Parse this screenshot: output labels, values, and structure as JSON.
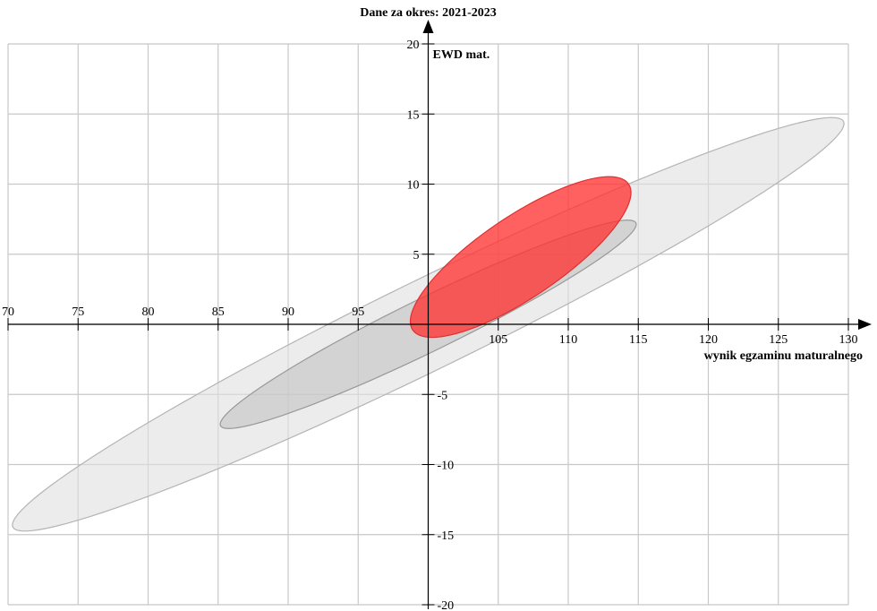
{
  "chart_data": {
    "type": "scatter",
    "title": "Dane za okres: 2021-2023",
    "xlabel": "wynik egzaminu maturalnego",
    "ylabel": "EWD mat.",
    "xlim": [
      70,
      130
    ],
    "ylim": [
      -20,
      20
    ],
    "x_ticks": [
      70,
      75,
      80,
      85,
      90,
      95,
      100,
      105,
      110,
      115,
      120,
      125,
      130
    ],
    "y_ticks": [
      -20,
      -15,
      -10,
      -5,
      0,
      5,
      10,
      15,
      20
    ],
    "x_tick_labels": [
      "70",
      "75",
      "80",
      "85",
      "90",
      "95",
      "",
      "105",
      "110",
      "115",
      "120",
      "125",
      "130"
    ],
    "y_tick_labels": [
      "-20",
      "-15",
      "-10",
      "-5",
      "",
      "5",
      "10",
      "15",
      "20"
    ],
    "grid": true,
    "ellipses": [
      {
        "kind": "outer-band",
        "center": [
          100,
          0
        ],
        "semi_major": 33.0,
        "semi_minor": 3.2,
        "angle_deg": 26,
        "fill": "#e0e0e0",
        "stroke": "#b4b4b4",
        "opacity": 0.6
      },
      {
        "kind": "inner-band",
        "center": [
          100,
          0
        ],
        "semi_major": 16.5,
        "semi_minor": 1.9,
        "angle_deg": 26,
        "fill": "#c0c0c0",
        "stroke": "#989898",
        "opacity": 0.55
      },
      {
        "kind": "school",
        "center": [
          106.6,
          4.8
        ],
        "semi_major": 9.3,
        "semi_minor": 2.9,
        "angle_deg": 34,
        "fill": "#ff3333",
        "stroke": "#e03030",
        "opacity": 0.78
      }
    ]
  }
}
